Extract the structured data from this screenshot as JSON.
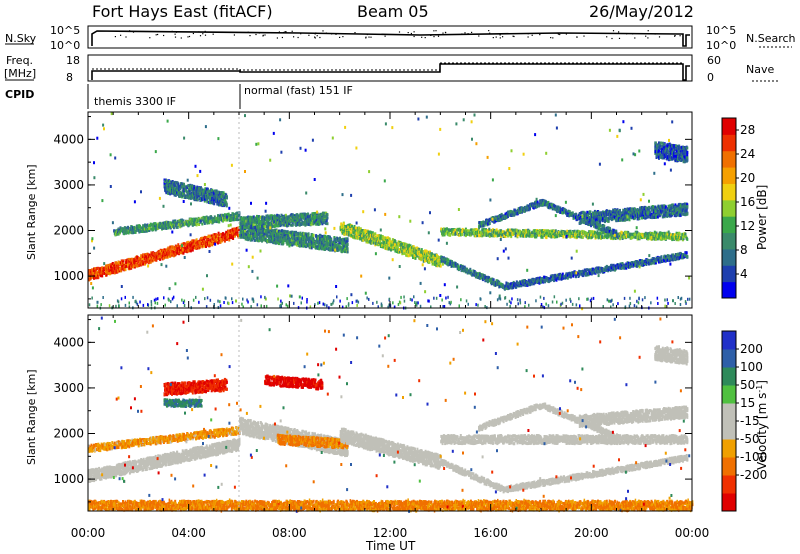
{
  "header": {
    "radar": "Fort Hays East (fitACF)",
    "beam": "Beam 05",
    "date": "26/May/2012"
  },
  "top_panels": {
    "nsky_label": "N.Sky",
    "nsearch_label": "N.Search",
    "freq_label_1": "Freq.",
    "freq_label_2": "[MHz]",
    "nave_label": "Nave",
    "cpid_label": "CPID",
    "noise_ticks_left": [
      "10^5",
      "10^0"
    ],
    "noise_ticks_right": [
      "10^5",
      "10^0"
    ],
    "freq_ticks": [
      "18",
      "8"
    ],
    "nave_ticks": [
      "60",
      "0"
    ],
    "cpid_segments": [
      {
        "label": "themis 3300 IF",
        "start_hour": 0,
        "end_hour": 6
      },
      {
        "label": "normal (fast) 151 IF",
        "start_hour": 6,
        "end_hour": 24
      }
    ]
  },
  "colors": {
    "power_scale": [
      "#0000ee",
      "#1e3fae",
      "#2e6e8a",
      "#3a8a6a",
      "#3aa84a",
      "#8fcf30",
      "#f0d010",
      "#f5a000",
      "#f07000",
      "#ee3000",
      "#e00000"
    ],
    "velocity_scale": [
      "#2030c8",
      "#2e5fa8",
      "#2e8a5a",
      "#50c040",
      "#c0c0b8",
      "#c0c0b8",
      "#f0a000",
      "#f07000",
      "#f03000",
      "#e00000"
    ]
  },
  "chart_data": [
    {
      "type": "heatmap",
      "name": "power-panel",
      "ylabel": "Slant Range [km]",
      "yticks": [
        "1000",
        "2000",
        "3000",
        "4000"
      ],
      "ylim": [
        300,
        4600
      ],
      "xlim": [
        0,
        24
      ],
      "colorbar_label": "Power [dB]",
      "colorbar_ticks": [
        "4",
        "8",
        "12",
        "16",
        "20",
        "24",
        "28"
      ],
      "colorbar_range": [
        0,
        30
      ],
      "bands": [
        {
          "t0": 0.0,
          "t1": 6.0,
          "r0": 1050,
          "r1": 2000,
          "w": 220,
          "v": 26
        },
        {
          "t0": 1.0,
          "t1": 6.0,
          "r0": 2000,
          "r1": 2350,
          "w": 150,
          "v": 10
        },
        {
          "t0": 3.0,
          "t1": 5.5,
          "r0": 3000,
          "r1": 2700,
          "w": 300,
          "v": 7
        },
        {
          "t0": 6.0,
          "t1": 10.3,
          "r0": 2000,
          "r1": 1700,
          "w": 300,
          "v": 9
        },
        {
          "t0": 6.0,
          "t1": 9.5,
          "r0": 2200,
          "r1": 2300,
          "w": 250,
          "v": 9
        },
        {
          "t0": 10.0,
          "t1": 14.0,
          "r0": 2100,
          "r1": 1350,
          "w": 250,
          "v": 14
        },
        {
          "t0": 14.0,
          "t1": 23.8,
          "r0": 2000,
          "r1": 1900,
          "w": 150,
          "v": 13
        },
        {
          "t0": 14.0,
          "t1": 16.5,
          "r0": 1400,
          "r1": 800,
          "w": 120,
          "v": 8
        },
        {
          "t0": 16.5,
          "t1": 23.8,
          "r0": 800,
          "r1": 1500,
          "w": 120,
          "v": 6
        },
        {
          "t0": 15.5,
          "t1": 18.0,
          "r0": 2150,
          "r1": 2650,
          "w": 120,
          "v": 7
        },
        {
          "t0": 18.0,
          "t1": 21.0,
          "r0": 2650,
          "r1": 1950,
          "w": 120,
          "v": 7
        },
        {
          "t0": 19.5,
          "t1": 23.8,
          "r0": 2300,
          "r1": 2500,
          "w": 250,
          "v": 7
        },
        {
          "t0": 22.5,
          "t1": 23.8,
          "r0": 3800,
          "r1": 3700,
          "w": 350,
          "v": 6
        }
      ]
    },
    {
      "type": "heatmap",
      "name": "velocity-panel",
      "ylabel": "Slant Range [km]",
      "xlabel": "Time UT",
      "yticks": [
        "1000",
        "2000",
        "3000",
        "4000"
      ],
      "xticks": [
        "00:00",
        "04:00",
        "08:00",
        "12:00",
        "16:00",
        "20:00",
        "00:00"
      ],
      "ylim": [
        300,
        4600
      ],
      "xlim": [
        0,
        24
      ],
      "colorbar_label": "Velocity [m s^-1]",
      "colorbar_ticks": [
        "200",
        "100",
        "50",
        "15",
        "-15",
        "-50",
        "-100",
        "-200"
      ],
      "bands": [
        {
          "t0": 0.0,
          "t1": 6.0,
          "r0": 1100,
          "r1": 1800,
          "w": 250,
          "v": -10
        },
        {
          "t0": 0.0,
          "t1": 6.0,
          "r0": 1700,
          "r1": 2100,
          "w": 150,
          "v": -40
        },
        {
          "t0": 3.0,
          "t1": 5.5,
          "r0": 3000,
          "r1": 3100,
          "w": 250,
          "v": -160
        },
        {
          "t0": 3.0,
          "t1": 4.5,
          "r0": 2700,
          "r1": 2700,
          "w": 150,
          "v": 60
        },
        {
          "t0": 6.0,
          "t1": 10.3,
          "r0": 2200,
          "r1": 1700,
          "w": 350,
          "v": -5
        },
        {
          "t0": 7.5,
          "t1": 10.3,
          "r0": 1900,
          "r1": 1800,
          "w": 200,
          "v": -60
        },
        {
          "t0": 7.0,
          "t1": 9.3,
          "r0": 3200,
          "r1": 3100,
          "w": 200,
          "v": -180
        },
        {
          "t0": 10.0,
          "t1": 14.0,
          "r0": 2000,
          "r1": 1400,
          "w": 300,
          "v": -5
        },
        {
          "t0": 14.0,
          "t1": 23.8,
          "r0": 1900,
          "r1": 1900,
          "w": 180,
          "v": -5
        },
        {
          "t0": 14.0,
          "t1": 16.5,
          "r0": 1400,
          "r1": 800,
          "w": 120,
          "v": -5
        },
        {
          "t0": 16.5,
          "t1": 23.8,
          "r0": 800,
          "r1": 1500,
          "w": 120,
          "v": -5
        },
        {
          "t0": 15.5,
          "t1": 18.0,
          "r0": 2150,
          "r1": 2650,
          "w": 120,
          "v": -5
        },
        {
          "t0": 18.0,
          "t1": 21.0,
          "r0": 2650,
          "r1": 1950,
          "w": 120,
          "v": -5
        },
        {
          "t0": 19.5,
          "t1": 23.8,
          "r0": 2300,
          "r1": 2500,
          "w": 250,
          "v": -5
        },
        {
          "t0": 22.5,
          "t1": 23.8,
          "r0": 3800,
          "r1": 3700,
          "w": 300,
          "v": -5
        },
        {
          "t0": 0.0,
          "t1": 24.0,
          "r0": 450,
          "r1": 450,
          "w": 200,
          "v": -60
        }
      ]
    }
  ]
}
